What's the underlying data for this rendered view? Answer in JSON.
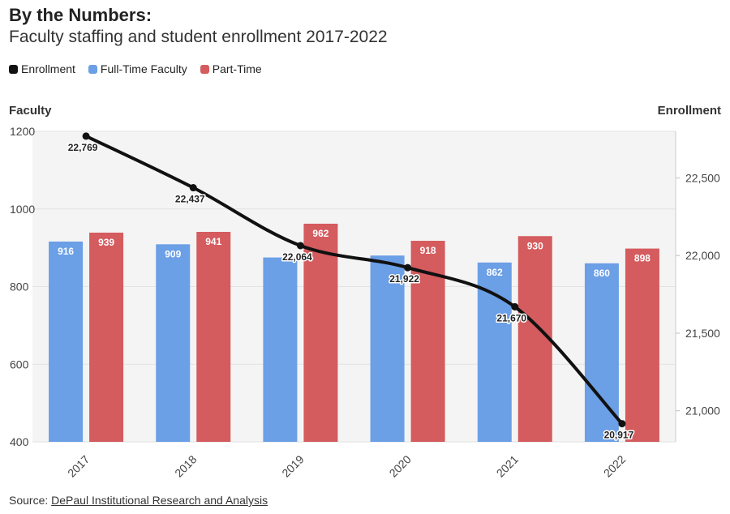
{
  "header": {
    "title": "By the Numbers:",
    "subtitle": "Faculty staffing and student enrollment 2017-2022"
  },
  "legend": [
    {
      "label": "Enrollment",
      "color": "#111111"
    },
    {
      "label": "Full-Time Faculty",
      "color": "#6b9fe6"
    },
    {
      "label": "Part-Time",
      "color": "#d45b5e"
    }
  ],
  "axes": {
    "left_title": "Faculty",
    "right_title": "Enrollment"
  },
  "source": {
    "prefix": "Source: ",
    "link_text": "DePaul Institutional Research and Analysis"
  },
  "chart_data": {
    "type": "bar",
    "categories": [
      "2017",
      "2018",
      "2019",
      "2020",
      "2021",
      "2022"
    ],
    "series": [
      {
        "name": "Full-Time Faculty",
        "axis": "left",
        "type": "bar",
        "color": "#6b9fe6",
        "values": [
          916,
          909,
          875,
          880,
          862,
          860
        ],
        "labels": [
          "916",
          "909",
          "",
          "",
          "862",
          "860"
        ]
      },
      {
        "name": "Part-Time",
        "axis": "left",
        "type": "bar",
        "color": "#d45b5e",
        "values": [
          939,
          941,
          962,
          918,
          930,
          898
        ],
        "labels": [
          "939",
          "941",
          "962",
          "918",
          "930",
          "898"
        ]
      },
      {
        "name": "Enrollment",
        "axis": "right",
        "type": "line",
        "color": "#111111",
        "values": [
          22769,
          22437,
          22064,
          21922,
          21670,
          20917
        ],
        "labels": [
          "22,769",
          "22,437",
          "22,064",
          "21,922",
          "21,670",
          "20,917"
        ]
      }
    ],
    "y_left": {
      "range": [
        400,
        1200
      ],
      "ticks": [
        "400",
        "600",
        "800",
        "1000",
        "1200"
      ]
    },
    "y_right": {
      "range": [
        20800,
        22800
      ],
      "ticks": [
        "21,000",
        "21,500",
        "22,000",
        "22,500"
      ],
      "tick_values": [
        21000,
        21500,
        22000,
        22500
      ]
    },
    "grid": true
  }
}
